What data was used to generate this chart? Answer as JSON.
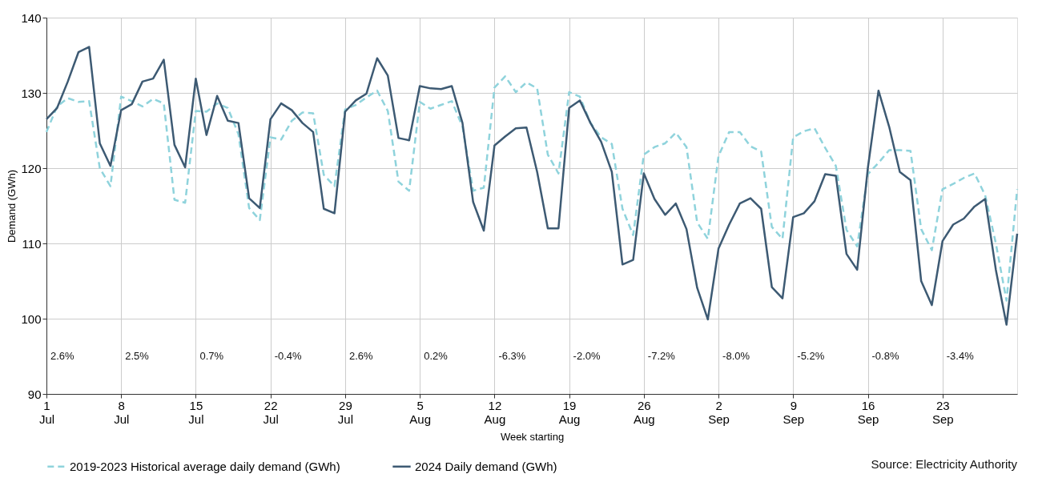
{
  "chart_data": {
    "type": "line",
    "xlabel": "Week starting",
    "ylabel": "Demand (GWh)",
    "xlim": [
      "2024-07-01",
      "2024-09-30"
    ],
    "xticks": [
      {
        "value": "2024-07-01",
        "label": "1 Jul"
      },
      {
        "value": "2024-07-08",
        "label": "8 Jul"
      },
      {
        "value": "2024-07-15",
        "label": "15 Jul"
      },
      {
        "value": "2024-07-22",
        "label": "22 Jul"
      },
      {
        "value": "2024-07-29",
        "label": "29 Jul"
      },
      {
        "value": "2024-08-05",
        "label": "5 Aug"
      },
      {
        "value": "2024-08-12",
        "label": "12 Aug"
      },
      {
        "value": "2024-08-19",
        "label": "19 Aug"
      },
      {
        "value": "2024-08-26",
        "label": "26 Aug"
      },
      {
        "value": "2024-09-02",
        "label": "2 Sep"
      },
      {
        "value": "2024-09-09",
        "label": "9 Sep"
      },
      {
        "value": "2024-09-16",
        "label": "16 Sep"
      },
      {
        "value": "2024-09-23",
        "label": "23 Sep"
      }
    ],
    "ylim": [
      90,
      140
    ],
    "yticks": [
      90,
      100,
      110,
      120,
      130,
      140
    ],
    "grid": true,
    "legend": "bottom",
    "x": [
      "2024-07-01",
      "2024-07-02",
      "2024-07-03",
      "2024-07-04",
      "2024-07-05",
      "2024-07-06",
      "2024-07-07",
      "2024-07-08",
      "2024-07-09",
      "2024-07-10",
      "2024-07-11",
      "2024-07-12",
      "2024-07-13",
      "2024-07-14",
      "2024-07-15",
      "2024-07-16",
      "2024-07-17",
      "2024-07-18",
      "2024-07-19",
      "2024-07-20",
      "2024-07-21",
      "2024-07-22",
      "2024-07-23",
      "2024-07-24",
      "2024-07-25",
      "2024-07-26",
      "2024-07-27",
      "2024-07-28",
      "2024-07-29",
      "2024-07-30",
      "2024-07-31",
      "2024-08-01",
      "2024-08-02",
      "2024-08-03",
      "2024-08-04",
      "2024-08-05",
      "2024-08-06",
      "2024-08-07",
      "2024-08-08",
      "2024-08-09",
      "2024-08-10",
      "2024-08-11",
      "2024-08-12",
      "2024-08-13",
      "2024-08-14",
      "2024-08-15",
      "2024-08-16",
      "2024-08-17",
      "2024-08-18",
      "2024-08-19",
      "2024-08-20",
      "2024-08-21",
      "2024-08-22",
      "2024-08-23",
      "2024-08-24",
      "2024-08-25",
      "2024-08-26",
      "2024-08-27",
      "2024-08-28",
      "2024-08-29",
      "2024-08-30",
      "2024-08-31",
      "2024-09-01",
      "2024-09-02",
      "2024-09-03",
      "2024-09-04",
      "2024-09-05",
      "2024-09-06",
      "2024-09-07",
      "2024-09-08",
      "2024-09-09",
      "2024-09-10",
      "2024-09-11",
      "2024-09-12",
      "2024-09-13",
      "2024-09-14",
      "2024-09-15",
      "2024-09-16",
      "2024-09-17",
      "2024-09-18",
      "2024-09-19",
      "2024-09-20",
      "2024-09-21",
      "2024-09-22",
      "2024-09-23",
      "2024-09-24",
      "2024-09-25",
      "2024-09-26",
      "2024-09-27",
      "2024-09-28",
      "2024-09-29",
      "2024-09-30"
    ],
    "series": [
      {
        "name": "2019-2023 Historical average daily demand (GWh)",
        "color": "#8fd3dc",
        "line_style": "dashed",
        "values": [
          124.8,
          128.2,
          129.3,
          128.8,
          128.9,
          120.0,
          117.6,
          129.5,
          128.9,
          128.2,
          129.2,
          128.6,
          115.8,
          115.4,
          127.6,
          127.5,
          128.6,
          128.0,
          124.5,
          114.7,
          113.1,
          124.1,
          123.8,
          126.3,
          127.4,
          127.3,
          119.1,
          117.6,
          127.8,
          128.4,
          129.4,
          130.3,
          127.6,
          118.2,
          117.0,
          128.8,
          127.9,
          128.4,
          128.9,
          125.5,
          117.0,
          117.4,
          130.7,
          132.2,
          130.1,
          131.4,
          130.6,
          121.8,
          119.3,
          130.1,
          129.5,
          126.0,
          124.1,
          123.2,
          114.6,
          111.1,
          121.8,
          122.8,
          123.3,
          124.7,
          122.8,
          112.8,
          110.6,
          121.6,
          124.8,
          124.8,
          122.9,
          122.2,
          112.2,
          110.6,
          124.1,
          124.9,
          125.3,
          122.7,
          120.3,
          111.8,
          109.6,
          119.2,
          120.7,
          122.4,
          122.4,
          122.3,
          111.9,
          109.1,
          117.2,
          117.9,
          118.7,
          119.3,
          116.4,
          110.0,
          102.4,
          117.2
        ]
      },
      {
        "name": "2024 Daily demand (GWh)",
        "color": "#3d5a73",
        "line_style": "solid",
        "values": [
          126.5,
          128.0,
          131.5,
          135.4,
          136.1,
          123.3,
          120.3,
          127.7,
          128.5,
          131.5,
          131.9,
          134.4,
          123.1,
          120.1,
          131.9,
          124.4,
          129.6,
          126.3,
          126.0,
          116.0,
          114.7,
          126.5,
          128.6,
          127.7,
          126.0,
          124.8,
          114.6,
          114.0,
          127.5,
          129.0,
          129.9,
          134.6,
          132.3,
          124.0,
          123.7,
          130.9,
          130.6,
          130.5,
          130.9,
          126.0,
          115.5,
          111.7,
          123.0,
          124.2,
          125.3,
          125.4,
          119.5,
          112.0,
          112.0,
          128.0,
          129.0,
          126.0,
          123.5,
          119.5,
          107.2,
          107.8,
          119.3,
          115.9,
          113.8,
          115.3,
          111.9,
          104.1,
          99.9,
          109.3,
          112.5,
          115.3,
          116.0,
          114.6,
          104.2,
          102.7,
          113.5,
          114.0,
          115.6,
          119.2,
          119.0,
          108.6,
          106.5,
          120.0,
          130.3,
          125.5,
          119.5,
          118.4,
          105.0,
          101.8,
          110.3,
          112.5,
          113.3,
          114.9,
          115.9,
          106.5,
          99.2,
          111.3
        ]
      }
    ],
    "annotations": [
      "2.6%",
      "2.5%",
      "0.7%",
      "-0.4%",
      "2.6%",
      "0.2%",
      "-6.3%",
      "-2.0%",
      "-7.2%",
      "-8.0%",
      "-5.2%",
      "-0.8%",
      "-3.4%",
      "Source: Electricity Authority"
    ]
  }
}
